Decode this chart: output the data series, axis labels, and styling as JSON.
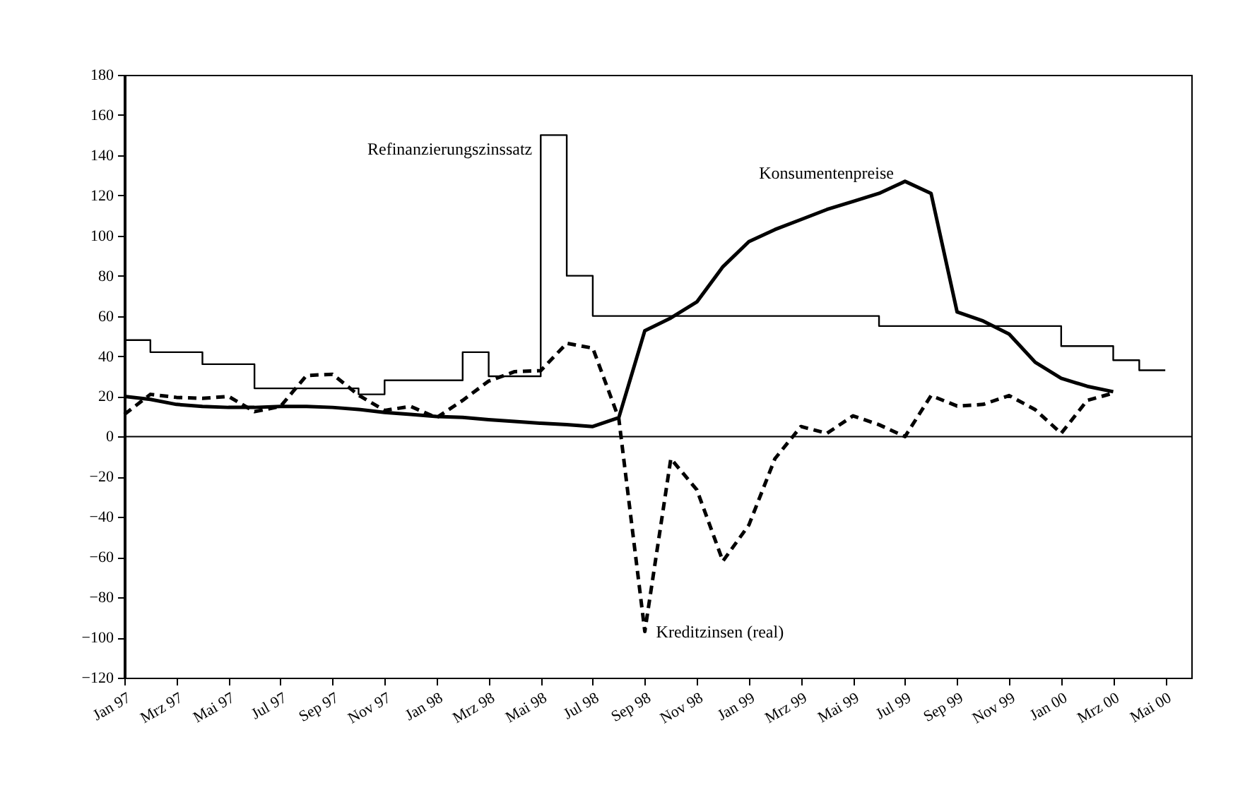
{
  "chart_data": {
    "type": "line",
    "categories": [
      "Jan 97",
      null,
      "Mrz 97",
      null,
      "Mai 97",
      null,
      "Jul 97",
      null,
      "Sep 97",
      null,
      "Nov 97",
      null,
      "Jan 98",
      null,
      "Mrz 98",
      null,
      "Mai 98",
      null,
      "Jul 98",
      null,
      "Sep 98",
      null,
      "Nov 98",
      null,
      "Jan 99",
      null,
      "Mrz 99",
      null,
      "Mai 99",
      null,
      "Jul 99",
      null,
      "Sep 99",
      null,
      "Nov 99",
      null,
      "Jan 00",
      null,
      "Mrz 00",
      null,
      "Mai 00",
      null
    ],
    "series": [
      {
        "name": "Refinanzierungszinssatz",
        "type": "step",
        "color": "#000000",
        "line_style": "solid",
        "values": [
          48,
          42,
          42,
          36,
          36,
          24,
          24,
          24,
          24,
          21,
          28,
          28,
          28,
          42,
          30,
          30,
          150,
          80,
          60,
          60,
          60,
          60,
          60,
          60,
          60,
          60,
          60,
          60,
          60,
          55,
          55,
          55,
          55,
          55,
          55,
          55,
          45,
          45,
          38,
          33,
          33,
          null
        ]
      },
      {
        "name": "Konsumentenpreise",
        "type": "line",
        "color": "#000000",
        "line_style": "solid",
        "values": [
          20,
          18.5,
          16,
          15,
          14.5,
          14.5,
          15,
          15,
          14.5,
          13.5,
          12,
          11,
          10,
          9.5,
          8.4,
          7.5,
          6.6,
          5.9,
          5,
          9.4,
          52.7,
          59,
          67,
          84.5,
          97,
          103,
          108,
          113,
          117,
          121,
          127,
          121,
          62,
          57.5,
          51,
          37,
          29,
          25,
          22.3,
          null,
          null,
          null
        ]
      },
      {
        "name": "Kreditzinsen (real)",
        "type": "line",
        "color": "#000000",
        "line_style": "dashed",
        "values": [
          11,
          21,
          19.5,
          19,
          20,
          12.4,
          15,
          30.4,
          31,
          20.6,
          13,
          15,
          9.4,
          18,
          27.6,
          32.3,
          32.8,
          46.4,
          44,
          9,
          -97,
          -11,
          -26.5,
          -62,
          -44,
          -11,
          5,
          1.6,
          10.3,
          5.9,
          0,
          20.4,
          15.2,
          16,
          20.4,
          13.4,
          1.6,
          18,
          21.6,
          null,
          null,
          null
        ]
      }
    ],
    "ylim": [
      -120,
      180
    ],
    "yticks": [
      -120,
      -100,
      -80,
      -60,
      -40,
      -20,
      0,
      20,
      40,
      60,
      80,
      100,
      120,
      140,
      160,
      180
    ],
    "ref_lines": [
      {
        "axis": "y",
        "value": 0,
        "color": "#000000"
      }
    ],
    "grid": false,
    "marker": "none"
  }
}
